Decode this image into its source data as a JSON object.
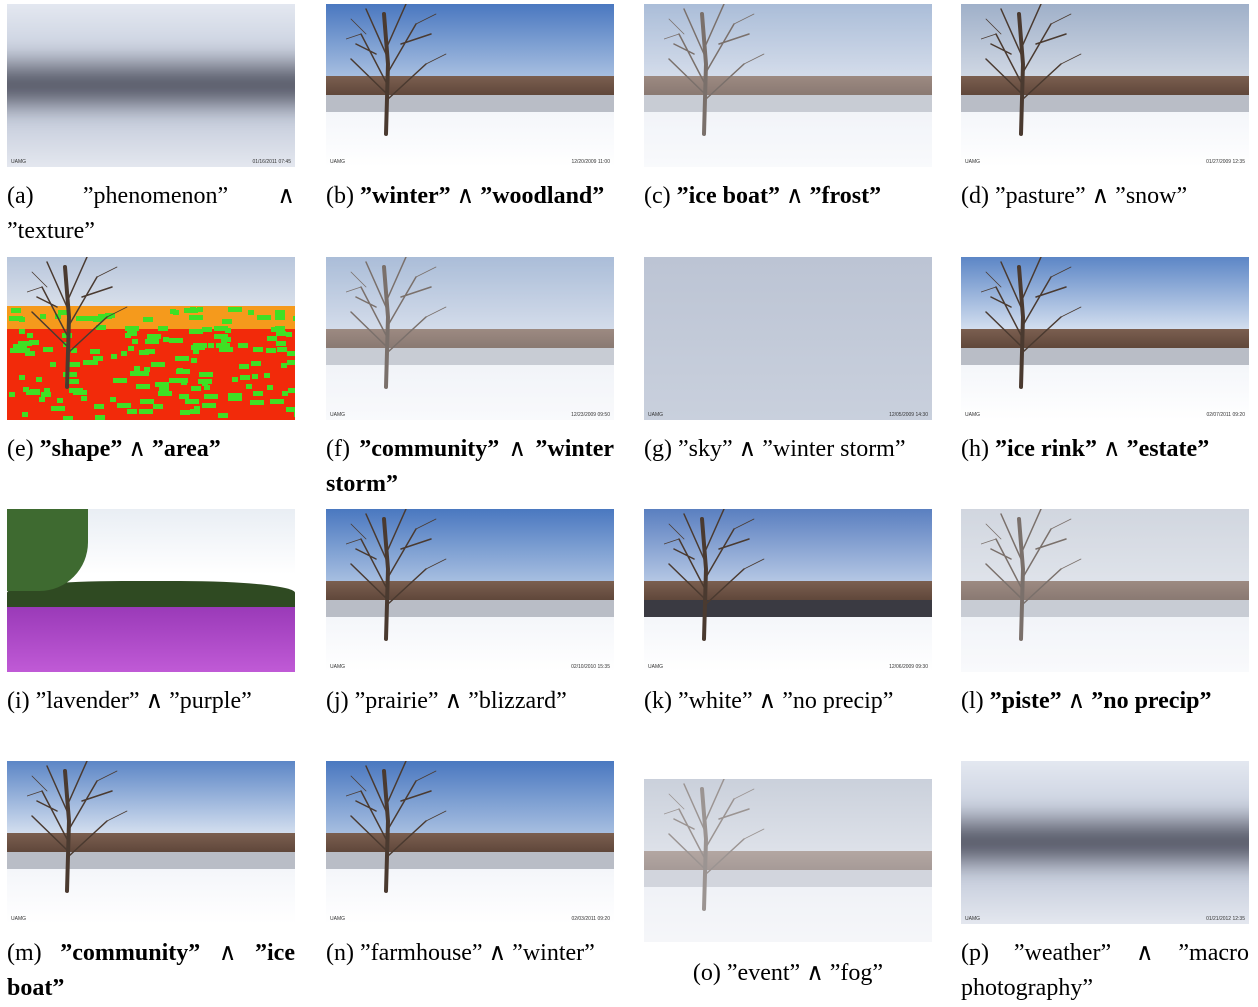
{
  "operator": "∧",
  "panels": [
    {
      "label": "(a)",
      "terms": [
        "”phenomenon”",
        "”texture”"
      ],
      "bold": false,
      "watermark": "UAMG",
      "timestamp": "01/16/2011 07:45"
    },
    {
      "label": "(b)",
      "terms": [
        "”winter”",
        "”woodland”"
      ],
      "bold": true,
      "watermark": "UAMG",
      "timestamp": "12/20/2009 11:00"
    },
    {
      "label": "(c)",
      "terms": [
        "”ice boat”",
        "”frost”"
      ],
      "bold": true
    },
    {
      "label": "(d)",
      "terms": [
        "”pasture”",
        "”snow”"
      ],
      "bold": false,
      "watermark": "UAMG",
      "timestamp": "01/27/2009 12:35"
    },
    {
      "label": "(e)",
      "terms": [
        "”shape”",
        "”area”"
      ],
      "bold": true
    },
    {
      "label": "(f)",
      "terms": [
        "”community”",
        "”winter storm”"
      ],
      "bold": true,
      "watermark": "UAMG",
      "timestamp": "12/23/2009 09:50"
    },
    {
      "label": "(g)",
      "terms": [
        "”sky”",
        "”winter storm”"
      ],
      "bold": false,
      "watermark": "UAMG",
      "timestamp": "12/05/2009 14:30"
    },
    {
      "label": "(h)",
      "terms": [
        "”ice rink”",
        "”estate”"
      ],
      "bold": true,
      "watermark": "UAMG",
      "timestamp": "02/07/2011 09:20"
    },
    {
      "label": "(i)",
      "terms": [
        "”lavender”",
        "”purple”"
      ],
      "bold": false
    },
    {
      "label": "(j)",
      "terms": [
        "”prairie”",
        "”blizzard”"
      ],
      "bold": false,
      "watermark": "UAMG",
      "timestamp": "02/10/2010 15:35"
    },
    {
      "label": "(k)",
      "terms": [
        "”white”",
        "”no precip”"
      ],
      "bold": false,
      "watermark": "UAMG",
      "timestamp": "12/06/2009 09:30"
    },
    {
      "label": "(l)",
      "terms": [
        "”piste”",
        "”no precip”"
      ],
      "bold": true
    },
    {
      "label": "(m)",
      "terms": [
        "”community”",
        "”ice boat”"
      ],
      "bold": true,
      "watermark": "UAMG"
    },
    {
      "label": "(n)",
      "terms": [
        "”farmhouse”",
        "”winter”"
      ],
      "bold": false,
      "watermark": "UAMG",
      "timestamp": "02/03/2011 09:20"
    },
    {
      "label": "(o)",
      "terms": [
        "”event”",
        "”fog”"
      ],
      "bold": false
    },
    {
      "label": "(p)",
      "terms": [
        "”weather”",
        "”macro photography”"
      ],
      "bold": false,
      "watermark": "UAMG",
      "timestamp": "01/21/2012 12:35"
    }
  ]
}
